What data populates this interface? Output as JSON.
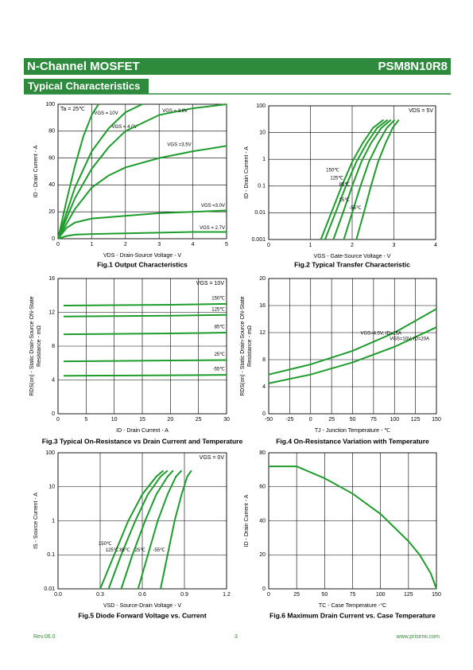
{
  "header": {
    "title": "N-Channel MOSFET",
    "part": "PSM8N10R8"
  },
  "section": "Typical Characteristics",
  "footer": {
    "rev": "Rev.06.0",
    "page": "3",
    "url": "www.prisemi.com"
  },
  "chart_data": [
    {
      "type": "line",
      "title": "Fig.1 Output Characteristics",
      "xlabel": "VDS - Drain-Source Voltage - V",
      "ylabel": [
        "ID - Drain Current - A"
      ],
      "annotation": "Ta = 25℃",
      "annotation_loc": "upper left",
      "xlim": [
        0,
        5
      ],
      "ylim": [
        0,
        100
      ],
      "xticks": [
        0,
        1,
        2,
        3,
        4,
        5
      ],
      "yticks": [
        0,
        20,
        40,
        60,
        80,
        100
      ],
      "grid": true,
      "series": [
        {
          "name": "VGS = 10V",
          "color": "#1e9c2c",
          "x": [
            0,
            0.25,
            0.5,
            0.75,
            1.0,
            1.2
          ],
          "values": [
            0,
            28,
            54,
            76,
            92,
            100
          ]
        },
        {
          "name": "VGS = 4.0V",
          "color": "#1e9c2c",
          "x": [
            0,
            0.5,
            1,
            1.5,
            2,
            2.5
          ],
          "values": [
            0,
            38,
            65,
            82,
            94,
            100
          ]
        },
        {
          "name": "VGS = 3.8V",
          "color": "#1e9c2c",
          "x": [
            0,
            0.5,
            1,
            1.5,
            2,
            3,
            4,
            5
          ],
          "values": [
            0,
            30,
            52,
            68,
            80,
            92,
            97,
            100
          ]
        },
        {
          "name": "VGS =3.5V",
          "color": "#1e9c2c",
          "x": [
            0,
            0.5,
            1,
            1.5,
            2,
            3,
            4,
            5
          ],
          "values": [
            0,
            22,
            38,
            47,
            53,
            60,
            65,
            69
          ]
        },
        {
          "name": "VGS =3.0V",
          "color": "#1e9c2c",
          "x": [
            0,
            0.25,
            0.5,
            1,
            2,
            3,
            4,
            5
          ],
          "values": [
            0,
            8,
            12,
            15,
            17,
            19,
            20,
            21
          ]
        },
        {
          "name": "VGS = 2.7V",
          "color": "#1e9c2c",
          "x": [
            0,
            0.25,
            0.5,
            1,
            2,
            3,
            4,
            5
          ],
          "values": [
            0,
            2,
            3,
            3.5,
            4,
            4.5,
            5,
            5
          ]
        }
      ]
    },
    {
      "type": "line",
      "title": "Fig.2 Typical Transfer Characteristic",
      "xlabel": "VGS - Gate-Source Voltage - V",
      "ylabel": [
        "ID - Drain Current - A"
      ],
      "annotation": "VDS = 5V",
      "annotation_loc": "upper right",
      "ylog": true,
      "xlim": [
        0,
        4
      ],
      "ylim": [
        0.001,
        100
      ],
      "xticks": [
        0,
        1,
        2,
        3,
        4
      ],
      "yticks": [
        0.001,
        0.01,
        0.1,
        1,
        10,
        100
      ],
      "grid": true,
      "series": [
        {
          "name": "150℃",
          "color": "#1e9c2c",
          "x": [
            1.25,
            1.5,
            1.75,
            2.0,
            2.25,
            2.5,
            2.75
          ],
          "values": [
            0.001,
            0.01,
            0.1,
            0.8,
            4,
            15,
            30
          ]
        },
        {
          "name": "125℃",
          "color": "#1e9c2c",
          "x": [
            1.35,
            1.6,
            1.85,
            2.1,
            2.35,
            2.6,
            2.85
          ],
          "values": [
            0.001,
            0.01,
            0.1,
            0.8,
            4,
            15,
            30
          ]
        },
        {
          "name": "85℃",
          "color": "#1e9c2c",
          "x": [
            1.55,
            1.78,
            2.0,
            2.22,
            2.45,
            2.7,
            2.93
          ],
          "values": [
            0.001,
            0.01,
            0.1,
            0.8,
            4,
            15,
            30
          ]
        },
        {
          "name": "25℃",
          "color": "#1e9c2c",
          "x": [
            1.8,
            2.0,
            2.2,
            2.4,
            2.62,
            2.83,
            3.02
          ],
          "values": [
            0.001,
            0.01,
            0.1,
            0.8,
            4,
            15,
            30
          ]
        },
        {
          "name": "-55℃",
          "color": "#1e9c2c",
          "x": [
            2.1,
            2.28,
            2.45,
            2.62,
            2.8,
            2.97,
            3.12
          ],
          "values": [
            0.001,
            0.01,
            0.1,
            0.8,
            4,
            15,
            30
          ]
        }
      ]
    },
    {
      "type": "line",
      "title": "Fig.3 Typical On-Resistance  vs Drain Current and Temperature",
      "xlabel": "ID - Drain Current - A",
      "ylabel": [
        "RDS(on) - Static Drain-Source ON-State",
        "Resistance - mΩ"
      ],
      "annotation": "VGS = 10V",
      "annotation_loc": "upper right",
      "xlim": [
        0,
        30
      ],
      "ylim": [
        0,
        16
      ],
      "xticks": [
        0,
        5,
        10,
        15,
        20,
        25,
        30
      ],
      "yticks": [
        0,
        4,
        8,
        12,
        16
      ],
      "grid": true,
      "series": [
        {
          "name": "150℃",
          "color": "#1e9c2c",
          "x": [
            1,
            10,
            20,
            30
          ],
          "values": [
            12.8,
            12.85,
            12.9,
            13.0
          ]
        },
        {
          "name": "125℃",
          "color": "#1e9c2c",
          "x": [
            1,
            10,
            20,
            30
          ],
          "values": [
            11.5,
            11.55,
            11.6,
            11.7
          ]
        },
        {
          "name": "85℃",
          "color": "#1e9c2c",
          "x": [
            1,
            10,
            20,
            30
          ],
          "values": [
            9.4,
            9.45,
            9.5,
            9.6
          ]
        },
        {
          "name": "25℃",
          "color": "#1e9c2c",
          "x": [
            1,
            10,
            20,
            30
          ],
          "values": [
            6.2,
            6.25,
            6.3,
            6.35
          ]
        },
        {
          "name": "-55℃",
          "color": "#1e9c2c",
          "x": [
            1,
            10,
            20,
            30
          ],
          "values": [
            4.5,
            4.52,
            4.55,
            4.6
          ]
        }
      ]
    },
    {
      "type": "line",
      "title": "Fig.4 On-Resistance Variation with Temperature",
      "xlabel": "TJ - Junction Temperature - ℃",
      "ylabel": [
        "RDS(on) - Static Drain-Source ON-State",
        "Resistance - mΩ"
      ],
      "xlim": [
        -50,
        150
      ],
      "ylim": [
        0,
        20
      ],
      "xticks": [
        -50,
        -25,
        0,
        25,
        50,
        75,
        100,
        125,
        150
      ],
      "yticks": [
        0,
        4,
        8,
        12,
        16,
        20
      ],
      "grid": true,
      "series": [
        {
          "name": "VGS=4.5V, ID=15A",
          "color": "#1e9c2c",
          "x": [
            -50,
            0,
            50,
            100,
            150
          ],
          "values": [
            5.8,
            7.3,
            9.3,
            12.0,
            15.5
          ]
        },
        {
          "name": "VGS=10V, ID=20A",
          "color": "#1e9c2c",
          "x": [
            -50,
            0,
            50,
            100,
            150
          ],
          "values": [
            4.5,
            5.8,
            7.6,
            9.9,
            12.8
          ]
        }
      ]
    },
    {
      "type": "line",
      "title": "Fig.5 Diode Forward Voltage vs. Current",
      "xlabel": "VSD - Source-Drain Voltage - V",
      "ylabel": [
        "IS - Source Current - A"
      ],
      "annotation": "VGS = 0V",
      "annotation_loc": "upper right",
      "ylog": true,
      "xlim": [
        0,
        1.2
      ],
      "ylim": [
        0.01,
        100
      ],
      "xticks": [
        {
          "value": 0,
          "label": "0.0"
        },
        0.3,
        0.6,
        0.9,
        1.2
      ],
      "yticks": [
        0.01,
        0.1,
        1,
        10,
        100
      ],
      "grid": true,
      "series": [
        {
          "name": "150℃",
          "color": "#1e9c2c",
          "x": [
            0.3,
            0.4,
            0.5,
            0.6,
            0.7,
            0.75
          ],
          "values": [
            0.01,
            0.1,
            1,
            6,
            20,
            30
          ]
        },
        {
          "name": "125℃",
          "color": "#1e9c2c",
          "x": [
            0.36,
            0.45,
            0.55,
            0.64,
            0.73,
            0.78
          ],
          "values": [
            0.01,
            0.1,
            1,
            6,
            20,
            30
          ]
        },
        {
          "name": "85℃",
          "color": "#1e9c2c",
          "x": [
            0.45,
            0.53,
            0.62,
            0.7,
            0.78,
            0.82
          ],
          "values": [
            0.01,
            0.1,
            1,
            6,
            20,
            30
          ]
        },
        {
          "name": "25℃",
          "color": "#1e9c2c",
          "x": [
            0.57,
            0.64,
            0.71,
            0.78,
            0.84,
            0.88
          ],
          "values": [
            0.01,
            0.1,
            1,
            6,
            20,
            30
          ]
        },
        {
          "name": "-55℃",
          "color": "#1e9c2c",
          "x": [
            0.73,
            0.78,
            0.83,
            0.88,
            0.92,
            0.95
          ],
          "values": [
            0.01,
            0.1,
            1,
            6,
            20,
            30
          ]
        }
      ]
    },
    {
      "type": "line",
      "title": "Fig.6 Maximum Drain Current vs. Case Temperature",
      "xlabel": "TC - Case Temperature -°C",
      "ylabel": [
        "ID - Drain Current - A"
      ],
      "xlim": [
        0,
        150
      ],
      "ylim": [
        0,
        80
      ],
      "xticks": [
        0,
        25,
        50,
        75,
        100,
        125,
        150
      ],
      "yticks": [
        0,
        20,
        40,
        60,
        80
      ],
      "grid": true,
      "series": [
        {
          "color": "#1e9c2c",
          "x": [
            0,
            25,
            50,
            75,
            100,
            125,
            135,
            145,
            150
          ],
          "values": [
            72,
            72,
            65,
            56,
            44,
            28,
            20,
            9,
            0
          ]
        }
      ]
    }
  ]
}
